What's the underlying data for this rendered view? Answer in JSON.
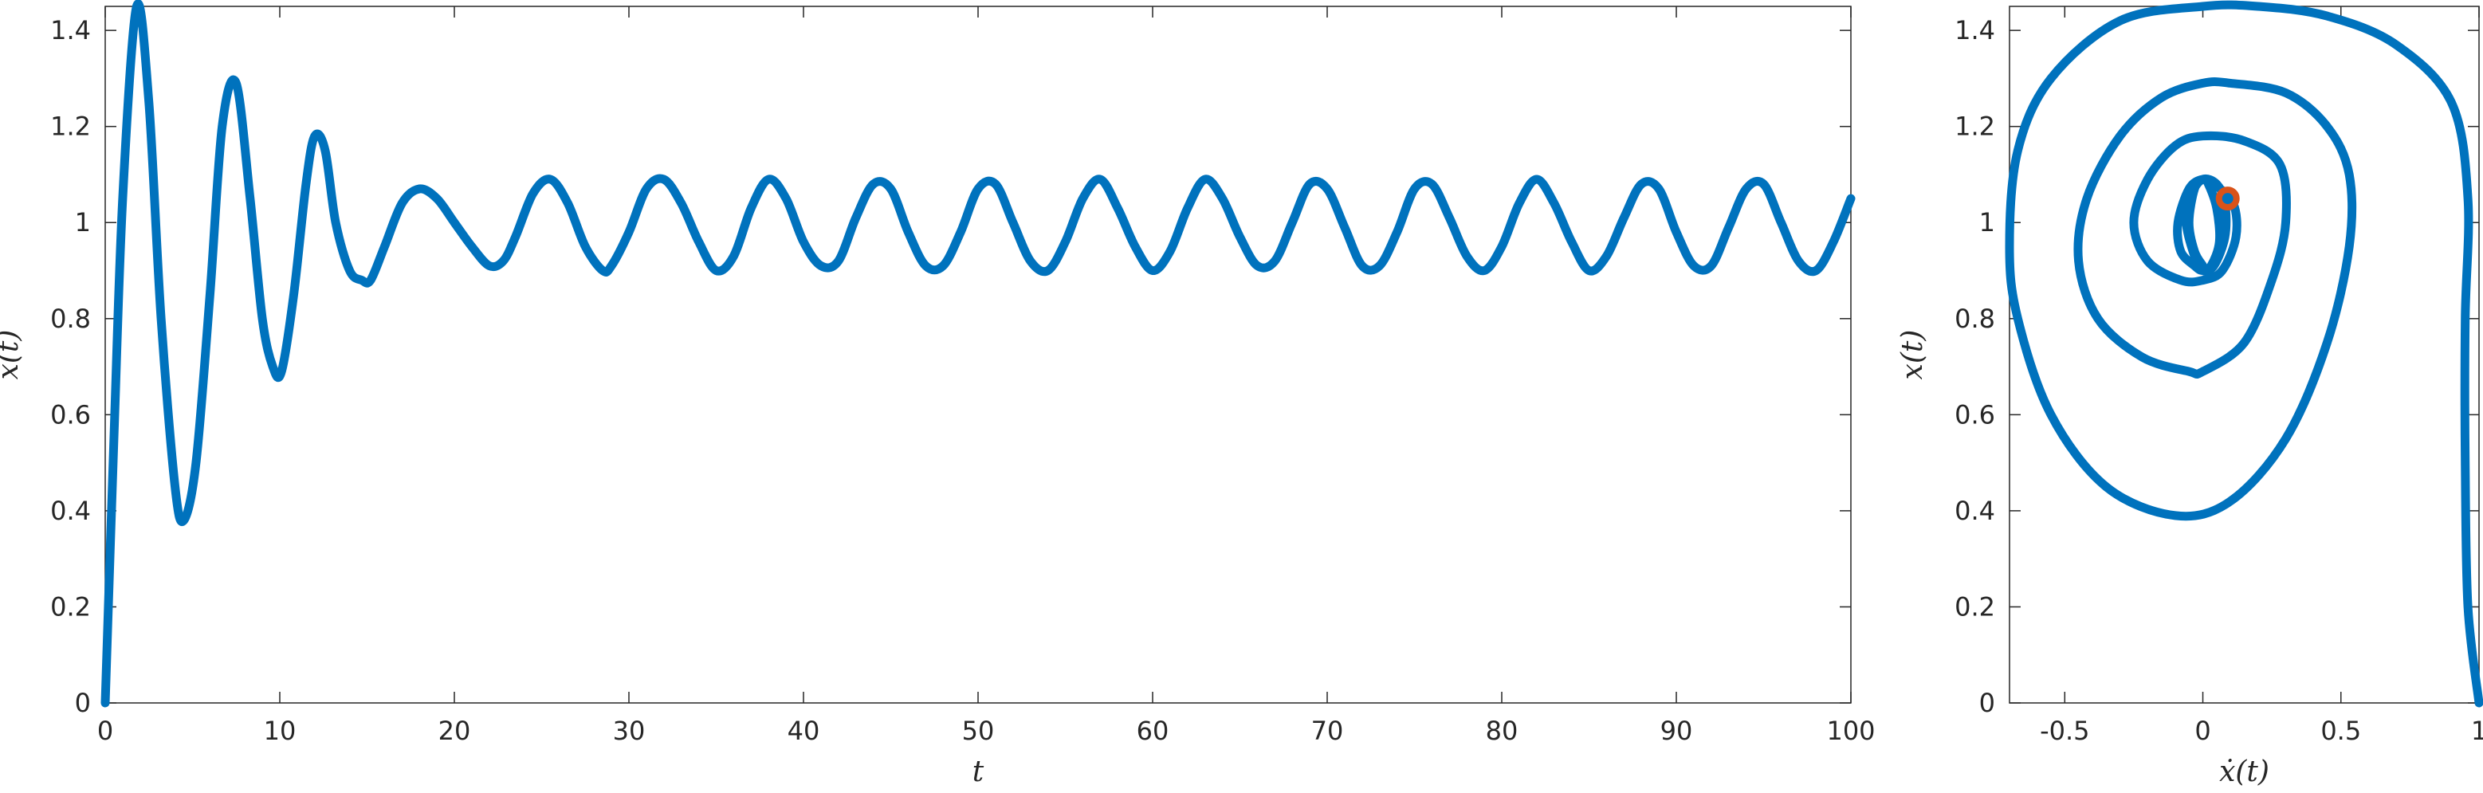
{
  "chart_data": [
    {
      "type": "line",
      "title": "",
      "xlabel": "t",
      "ylabel": "x(t)",
      "xlim": [
        0,
        100
      ],
      "ylim": [
        0,
        1.45
      ],
      "xticks": [
        0,
        10,
        20,
        30,
        40,
        50,
        60,
        70,
        80,
        90,
        100
      ],
      "yticks": [
        0,
        0.2,
        0.4,
        0.6,
        0.8,
        1,
        1.2,
        1.4
      ],
      "xtick_labels": [
        "0",
        "10",
        "20",
        "30",
        "40",
        "50",
        "60",
        "70",
        "80",
        "90",
        "100"
      ],
      "ytick_labels": [
        "0",
        "0.2",
        "0.4",
        "0.6",
        "0.8",
        "1",
        "1.2",
        "1.4"
      ],
      "grid": false,
      "series": [
        {
          "color": "#0072BD",
          "x": [
            0,
            0.5,
            1,
            1.8,
            2.5,
            3.2,
            4,
            4.5,
            5.2,
            6,
            6.7,
            7.5,
            8.3,
            9,
            9.6,
            10.1,
            10.8,
            11.5,
            12,
            12.6,
            13.2,
            14,
            14.7,
            15.2,
            16,
            17,
            18,
            19,
            20,
            21,
            22,
            22.8,
            23.5,
            24.5,
            25.5,
            26.5,
            27.5,
            28.5,
            29,
            30,
            31,
            32,
            33,
            34,
            35,
            36,
            37,
            38,
            39,
            40,
            41,
            42,
            43,
            44,
            45,
            46,
            47,
            48,
            49,
            50,
            51,
            52,
            53,
            54,
            55,
            56,
            57,
            58,
            59,
            60,
            61,
            62,
            63,
            64,
            65,
            66,
            67,
            68,
            69,
            70,
            71,
            72,
            73,
            74,
            75,
            76,
            77,
            78,
            79,
            80,
            81,
            82,
            83,
            84,
            85,
            86,
            87,
            88,
            89,
            90,
            91,
            92,
            93,
            94,
            95,
            96,
            97,
            98,
            99,
            100
          ],
          "y": [
            0,
            0.55,
            1.05,
            1.45,
            1.25,
            0.8,
            0.45,
            0.38,
            0.5,
            0.85,
            1.2,
            1.29,
            1.05,
            0.8,
            0.7,
            0.69,
            0.85,
            1.08,
            1.18,
            1.15,
            1.0,
            0.9,
            0.88,
            0.88,
            0.95,
            1.04,
            1.07,
            1.05,
            1.0,
            0.95,
            0.91,
            0.92,
            0.97,
            1.06,
            1.09,
            1.04,
            0.95,
            0.9,
            0.91,
            0.98,
            1.07,
            1.09,
            1.04,
            0.96,
            0.9,
            0.93,
            1.03,
            1.09,
            1.05,
            0.96,
            0.91,
            0.92,
            1.01,
            1.08,
            1.07,
            0.98,
            0.91,
            0.91,
            0.98,
            1.07,
            1.08,
            1.0,
            0.92,
            0.9,
            0.96,
            1.05,
            1.09,
            1.03,
            0.95,
            0.9,
            0.94,
            1.03,
            1.09,
            1.05,
            0.97,
            0.91,
            0.92,
            1.0,
            1.08,
            1.07,
            0.99,
            0.91,
            0.91,
            0.98,
            1.07,
            1.08,
            1.01,
            0.93,
            0.9,
            0.95,
            1.04,
            1.09,
            1.04,
            0.96,
            0.9,
            0.93,
            1.01,
            1.08,
            1.07,
            0.98,
            0.91,
            0.91,
            0.99,
            1.07,
            1.08,
            1.0,
            0.92,
            0.9,
            0.96,
            1.05
          ]
        }
      ]
    },
    {
      "type": "line",
      "title": "",
      "xlabel": "ẋ(t)",
      "ylabel": "x(t)",
      "xlim": [
        -0.7,
        1
      ],
      "ylim": [
        0,
        1.45
      ],
      "xticks": [
        -0.5,
        0,
        0.5,
        1
      ],
      "yticks": [
        0,
        0.2,
        0.4,
        0.6,
        0.8,
        1,
        1.2,
        1.4
      ],
      "xtick_labels": [
        "-0.5",
        "0",
        "0.5",
        "1"
      ],
      "ytick_labels": [
        "0",
        "0.2",
        "0.4",
        "0.6",
        "0.8",
        "1",
        "1.2",
        "1.4"
      ],
      "grid": false,
      "series": [
        {
          "color": "#0072BD",
          "x": [
            1,
            0.96,
            0.95,
            0.95,
            0.96,
            0.9,
            0.7,
            0.45,
            0.2,
            0,
            -0.3,
            -0.55,
            -0.67,
            -0.7,
            -0.67,
            -0.55,
            -0.35,
            -0.1,
            0.1,
            0.3,
            0.45,
            0.53,
            0.53,
            0.45,
            0.3,
            0.1,
            0,
            -0.15,
            -0.3,
            -0.42,
            -0.45,
            -0.38,
            -0.22,
            -0.05,
            0,
            0.15,
            0.25,
            0.3,
            0.28,
            0.15,
            0,
            -0.1,
            -0.2,
            -0.25,
            -0.2,
            -0.08,
            0,
            0.07,
            0.12,
            0.11,
            0.04,
            0,
            -0.05,
            -0.09,
            -0.08,
            -0.03,
            0,
            0.04,
            0.08,
            0.08,
            0.05,
            0,
            -0.04,
            -0.06,
            -0.03,
            0,
            0.03,
            0.06,
            0.05,
            0.02,
            0,
            -0.03,
            -0.05,
            -0.03,
            0
          ],
          "y": [
            0,
            0.2,
            0.5,
            0.8,
            1.05,
            1.25,
            1.37,
            1.43,
            1.45,
            1.45,
            1.42,
            1.3,
            1.15,
            0.95,
            0.8,
            0.6,
            0.45,
            0.39,
            0.42,
            0.55,
            0.75,
            0.95,
            1.1,
            1.2,
            1.27,
            1.29,
            1.29,
            1.26,
            1.18,
            1.05,
            0.92,
            0.8,
            0.72,
            0.69,
            0.69,
            0.75,
            0.88,
            1.0,
            1.12,
            1.17,
            1.18,
            1.16,
            1.09,
            1.0,
            0.92,
            0.88,
            0.88,
            0.9,
            0.97,
            1.04,
            1.08,
            1.09,
            1.07,
            1.0,
            0.94,
            0.91,
            0.9,
            0.91,
            0.97,
            1.04,
            1.08,
            1.09,
            1.06,
            1.0,
            0.93,
            0.9,
            0.91,
            0.96,
            1.03,
            1.08,
            1.09,
            1.07,
            1.0,
            0.94,
            0.91
          ]
        },
        {
          "type": "scatter",
          "color": "#D95319",
          "x": [
            0.09
          ],
          "y": [
            1.05
          ]
        }
      ]
    }
  ]
}
